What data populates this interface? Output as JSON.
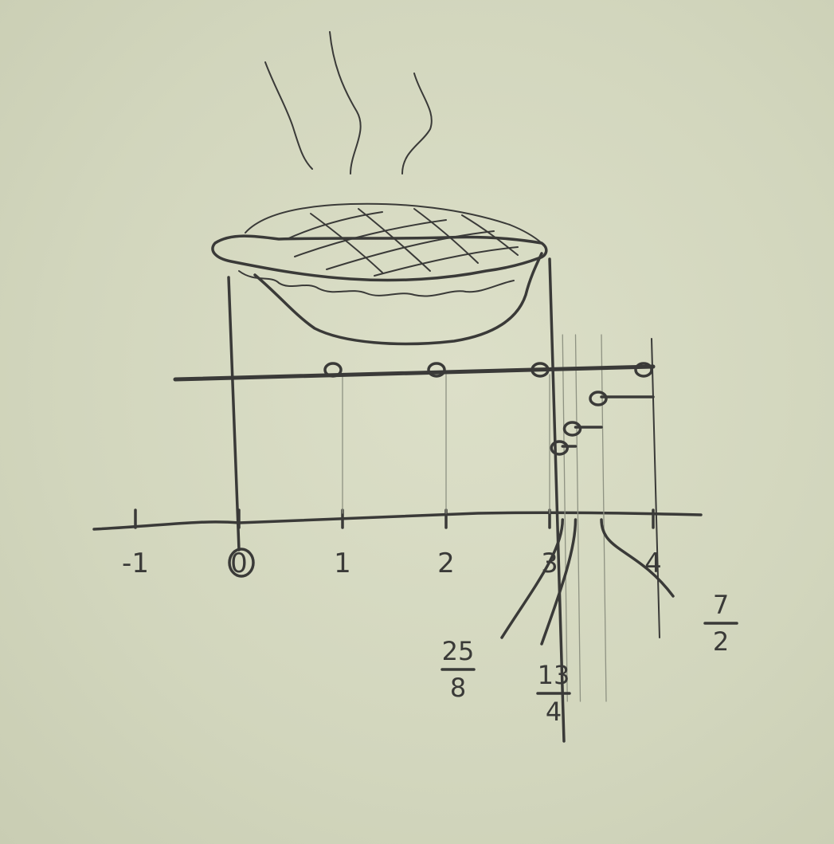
{
  "number_line": {
    "ticks": [
      {
        "value": -1,
        "label": "-1"
      },
      {
        "value": 0,
        "label": "0"
      },
      {
        "value": 1,
        "label": "1"
      },
      {
        "value": 2,
        "label": "2"
      },
      {
        "value": 3,
        "label": "3"
      },
      {
        "value": 4,
        "label": "4"
      }
    ],
    "range": [
      -1.2,
      4.5
    ]
  },
  "fractions": [
    {
      "numerator": "25",
      "denominator": "8",
      "value": 3.125
    },
    {
      "numerator": "13",
      "denominator": "4",
      "value": 3.25
    },
    {
      "numerator": "7",
      "denominator": "2",
      "value": 3.5
    }
  ],
  "jump_steps": [
    {
      "row": 1,
      "from": 0,
      "to": 4,
      "marks": [
        1,
        2,
        3,
        4
      ]
    },
    {
      "row": 2,
      "from": 3.5,
      "to": 4
    },
    {
      "row": 3,
      "from": 3.25,
      "to": 3.5
    },
    {
      "row": 4,
      "from": 3.125,
      "to": 3.25
    }
  ],
  "illustration": {
    "object": "pie",
    "steam_lines": 3
  }
}
